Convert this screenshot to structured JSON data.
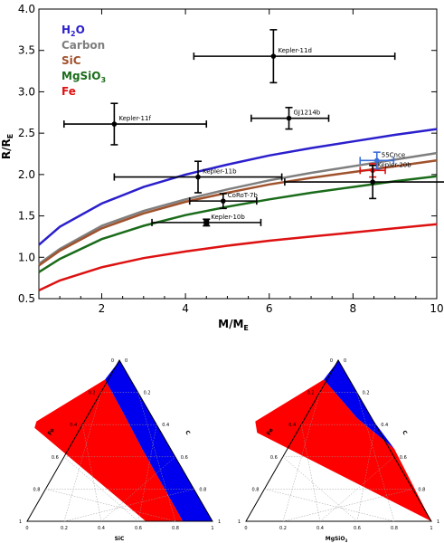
{
  "chart_data": [
    {
      "type": "scatter",
      "xlabel_main": "M/M",
      "xlabel_sub": "E",
      "ylabel_main": "R/R",
      "ylabel_sub": "E",
      "xlim": [
        0.5,
        10
      ],
      "ylim": [
        0.5,
        4.0
      ],
      "xticks": [
        "2",
        "4",
        "6",
        "8",
        "10"
      ],
      "yticks": [
        "0.5",
        "1.0",
        "1.5",
        "2.0",
        "2.5",
        "3.0",
        "3.5",
        "4.0"
      ],
      "legend_position": "top-left",
      "series": [
        {
          "name": "H2O",
          "label_main": "H",
          "label_sub": "2",
          "label_end": "O",
          "color": "#2b1fcc",
          "x": [
            0.5,
            1,
            2,
            3,
            4,
            5,
            6,
            7,
            8,
            9,
            10
          ],
          "y": [
            1.15,
            1.37,
            1.65,
            1.85,
            2.0,
            2.12,
            2.23,
            2.32,
            2.4,
            2.48,
            2.55
          ]
        },
        {
          "name": "Carbon",
          "label_main": "Carbon",
          "color": "#7f7f7f",
          "x": [
            0.5,
            1,
            2,
            3,
            4,
            5,
            6,
            7,
            8,
            9,
            10
          ],
          "y": [
            0.92,
            1.1,
            1.38,
            1.56,
            1.7,
            1.82,
            1.93,
            2.02,
            2.1,
            2.18,
            2.26
          ]
        },
        {
          "name": "SiC",
          "label_main": "SiC",
          "color": "#a0522d",
          "x": [
            0.5,
            1,
            2,
            3,
            4,
            5,
            6,
            7,
            8,
            9,
            10
          ],
          "y": [
            0.9,
            1.08,
            1.35,
            1.53,
            1.67,
            1.78,
            1.88,
            1.96,
            2.03,
            2.1,
            2.17
          ]
        },
        {
          "name": "MgSiO3",
          "label_main": "MgSiO",
          "label_sub": "3",
          "color": "#1a6b1a",
          "x": [
            0.5,
            1,
            2,
            3,
            4,
            5,
            6,
            7,
            8,
            9,
            10
          ],
          "y": [
            0.82,
            0.98,
            1.22,
            1.38,
            1.51,
            1.61,
            1.7,
            1.78,
            1.85,
            1.92,
            1.98
          ]
        },
        {
          "name": "Fe",
          "label_main": "Fe",
          "color": "#dd1111",
          "x": [
            0.5,
            1,
            2,
            3,
            4,
            5,
            6,
            7,
            8,
            9,
            10
          ],
          "y": [
            0.6,
            0.72,
            0.88,
            0.99,
            1.07,
            1.14,
            1.2,
            1.25,
            1.3,
            1.35,
            1.4
          ]
        }
      ],
      "points": [
        {
          "label": "Kepler-11d",
          "x": 6.1,
          "y": 3.43,
          "xerr": [
            1.9,
            2.9
          ],
          "yerr": [
            0.32,
            0.32
          ],
          "color": "#000000",
          "marker": "circle"
        },
        {
          "label": "GJ1214b",
          "x": 6.47,
          "y": 2.68,
          "xerr": [
            0.9,
            0.95
          ],
          "yerr": [
            0.13,
            0.13
          ],
          "color": "#000000",
          "marker": "circle"
        },
        {
          "label": "Kepler-11f",
          "x": 2.3,
          "y": 2.61,
          "xerr": [
            1.2,
            2.2
          ],
          "yerr": [
            0.25,
            0.25
          ],
          "color": "#000000",
          "marker": "circle"
        },
        {
          "label": "55Cnce",
          "x": 8.57,
          "y": 2.17,
          "xerr": [
            0.4,
            0.4
          ],
          "yerr": [
            0.1,
            0.1
          ],
          "color": "#3a6fd8",
          "marker": "circle"
        },
        {
          "label": "Kepler-20b",
          "x": 8.47,
          "y": 2.05,
          "xerr": [
            0.3,
            0.3
          ],
          "yerr": [
            0.08,
            0.08
          ],
          "color": "#dd1111",
          "marker": "circle"
        },
        {
          "label": "",
          "x": 8.47,
          "y": 1.91,
          "xerr": [
            2.1,
            2.5
          ],
          "yerr": [
            0.2,
            0.2
          ],
          "color": "#000000",
          "marker": "circle"
        },
        {
          "label": "Kepler-11b",
          "x": 4.3,
          "y": 1.97,
          "xerr": [
            2.0,
            2.0
          ],
          "yerr": [
            0.19,
            0.19
          ],
          "color": "#000000",
          "marker": "circle"
        },
        {
          "label": "CoRoT-7b",
          "x": 4.9,
          "y": 1.68,
          "xerr": [
            0.8,
            0.8
          ],
          "yerr": [
            0.09,
            0.09
          ],
          "color": "#000000",
          "marker": "circle"
        },
        {
          "label": "Kepler-10b",
          "x": 4.5,
          "y": 1.42,
          "xerr": [
            1.3,
            1.3
          ],
          "yerr": [
            0.04,
            0.04
          ],
          "color": "#000000",
          "marker": "square"
        }
      ]
    },
    {
      "type": "ternary",
      "axis_bottom_label": "SiC",
      "axis_left_label": "Fe",
      "axis_right_label": "C",
      "bottom_ticks": [
        "0",
        "0.2",
        "0.4",
        "0.6",
        "0.8",
        "1"
      ],
      "left_ticks": [
        "1",
        "0.8",
        "0.6",
        "0.4",
        "0.2",
        "0"
      ],
      "right_ticks": [
        "0",
        "0.2",
        "0.4",
        "0.6",
        "0.8",
        "1"
      ],
      "grid": true,
      "regions": [
        {
          "color": "#ff0000",
          "vertices_frac": [
            [
              0.15,
              0.74
            ],
            [
              0.27,
              0.76
            ],
            [
              0.28,
              0.8
            ],
            [
              0.48,
              0.98
            ],
            [
              0.62,
              0.98
            ],
            [
              0.62,
              0.86
            ],
            [
              0.41,
              0.66
            ],
            [
              0.15,
              0.66
            ]
          ]
        },
        {
          "color": "#0000ee",
          "vertices_frac": [
            [
              0.5,
              0.02
            ],
            [
              0.27,
              0.66
            ],
            [
              0.41,
              0.73
            ],
            [
              0.63,
              0.98
            ],
            [
              0.98,
              0.98
            ]
          ]
        }
      ]
    },
    {
      "type": "ternary",
      "axis_bottom_label_main": "MgSiO",
      "axis_bottom_label_sub": "3",
      "axis_left_label": "Fe",
      "axis_right_label": "C",
      "bottom_ticks": [
        "0",
        "0.2",
        "0.4",
        "0.6",
        "0.8",
        "1"
      ],
      "left_ticks": [
        "1",
        "0.8",
        "0.6",
        "0.4",
        "0.2",
        "0"
      ],
      "right_ticks": [
        "0",
        "0.2",
        "0.4",
        "0.6",
        "0.8",
        "1"
      ],
      "grid": true,
      "regions": []
    }
  ]
}
